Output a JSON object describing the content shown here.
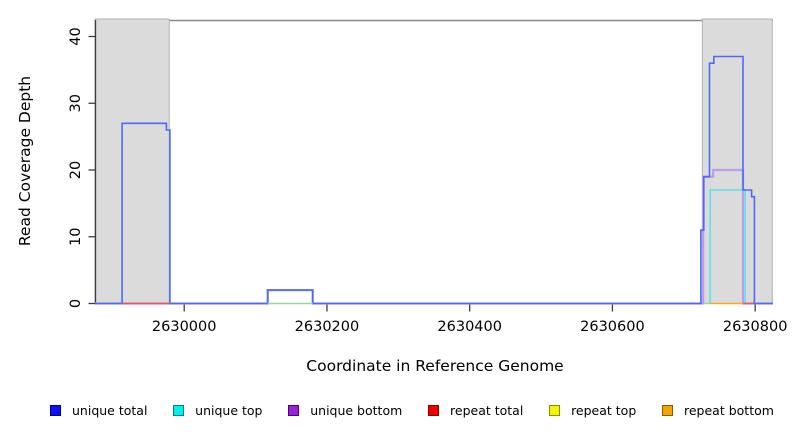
{
  "figure": {
    "kind": "R-style read coverage step plot"
  },
  "chart_data": {
    "type": "line",
    "subtype": "step-coverage",
    "title": "",
    "xlabel": "Coordinate in Reference Genome",
    "ylabel": "Read Coverage Depth",
    "xlim": [
      2629875,
      2630825
    ],
    "ylim": [
      0,
      42.5
    ],
    "xticks": [
      2630000,
      2630200,
      2630400,
      2630600,
      2630800
    ],
    "yticks": [
      0,
      10,
      20,
      30,
      40
    ],
    "grid": false,
    "frame_color": "#8A8A8A",
    "axis_color": "#3C3C3C",
    "masked_region_fill": "#DBDBDB",
    "masked_region_border": "#B2B2B2",
    "masked_regions": [
      [
        2629875,
        2629979
      ],
      [
        2630726,
        2630824
      ]
    ],
    "series": [
      {
        "name": "unique bottom",
        "color": "#BD9CEA",
        "width": 2.3,
        "points": [
          [
            2629875,
            0
          ],
          [
            2630117,
            0
          ],
          [
            2630117,
            2
          ],
          [
            2630180,
            2
          ],
          [
            2630180,
            0
          ],
          [
            2630727,
            0
          ],
          [
            2630727,
            19
          ],
          [
            2630741,
            19
          ],
          [
            2630741,
            20
          ],
          [
            2630783,
            20
          ],
          [
            2630783,
            0
          ],
          [
            2630825,
            0
          ]
        ]
      },
      {
        "name": "unique top",
        "color": "#58E2E8",
        "width": 1.5,
        "points": [
          [
            2630737,
            0
          ],
          [
            2630737,
            17
          ],
          [
            2630786,
            17
          ],
          [
            2630786,
            0
          ]
        ]
      },
      {
        "name": "unique total",
        "color": "#4A6CF2",
        "width": 1.6,
        "points": [
          [
            2629875,
            0
          ],
          [
            2629913,
            0
          ],
          [
            2629913,
            27
          ],
          [
            2629975,
            27
          ],
          [
            2629975,
            26
          ],
          [
            2629980,
            26
          ],
          [
            2629980,
            0
          ],
          [
            2630117,
            0
          ],
          [
            2630117,
            2
          ],
          [
            2630180,
            2
          ],
          [
            2630180,
            0
          ],
          [
            2630724,
            0
          ],
          [
            2630724,
            11
          ],
          [
            2630728,
            11
          ],
          [
            2630728,
            19
          ],
          [
            2630736,
            19
          ],
          [
            2630736,
            36
          ],
          [
            2630742,
            36
          ],
          [
            2630742,
            37
          ],
          [
            2630783,
            37
          ],
          [
            2630783,
            17
          ],
          [
            2630795,
            17
          ],
          [
            2630795,
            16
          ],
          [
            2630799,
            16
          ],
          [
            2630799,
            0
          ],
          [
            2630825,
            0
          ]
        ]
      }
    ],
    "baseline_segments": [
      {
        "name": "repeat total",
        "color": "#E85A5A",
        "from": 2629913,
        "to": 2629980
      },
      {
        "name": "unique-top-repeat-top-blend",
        "color": "#8FDA96",
        "from": 2630117,
        "to": 2630180
      },
      {
        "name": "unique-top-repeat-top-blend",
        "color": "#8FDA96",
        "from": 2630728,
        "to": 2630737
      },
      {
        "name": "repeat bottom",
        "color": "#FFA51E",
        "from": 2630737,
        "to": 2630783
      },
      {
        "name": "repeat total",
        "color": "#E85A5A",
        "from": 2630783,
        "to": 2630799
      }
    ],
    "legend_position": "bottom",
    "legend": [
      {
        "label": "unique total",
        "fill": "#1010F0",
        "border": "#00008B"
      },
      {
        "label": "unique top",
        "fill": "#00F0F0",
        "border": "#00808B"
      },
      {
        "label": "unique bottom",
        "fill": "#9B1FD8",
        "border": "#4B0082"
      },
      {
        "label": "repeat total",
        "fill": "#F00000",
        "border": "#8B0000"
      },
      {
        "label": "repeat top",
        "fill": "#F5F500",
        "border": "#8B8B00"
      },
      {
        "label": "repeat bottom",
        "fill": "#F5A300",
        "border": "#8B5A00"
      }
    ]
  }
}
